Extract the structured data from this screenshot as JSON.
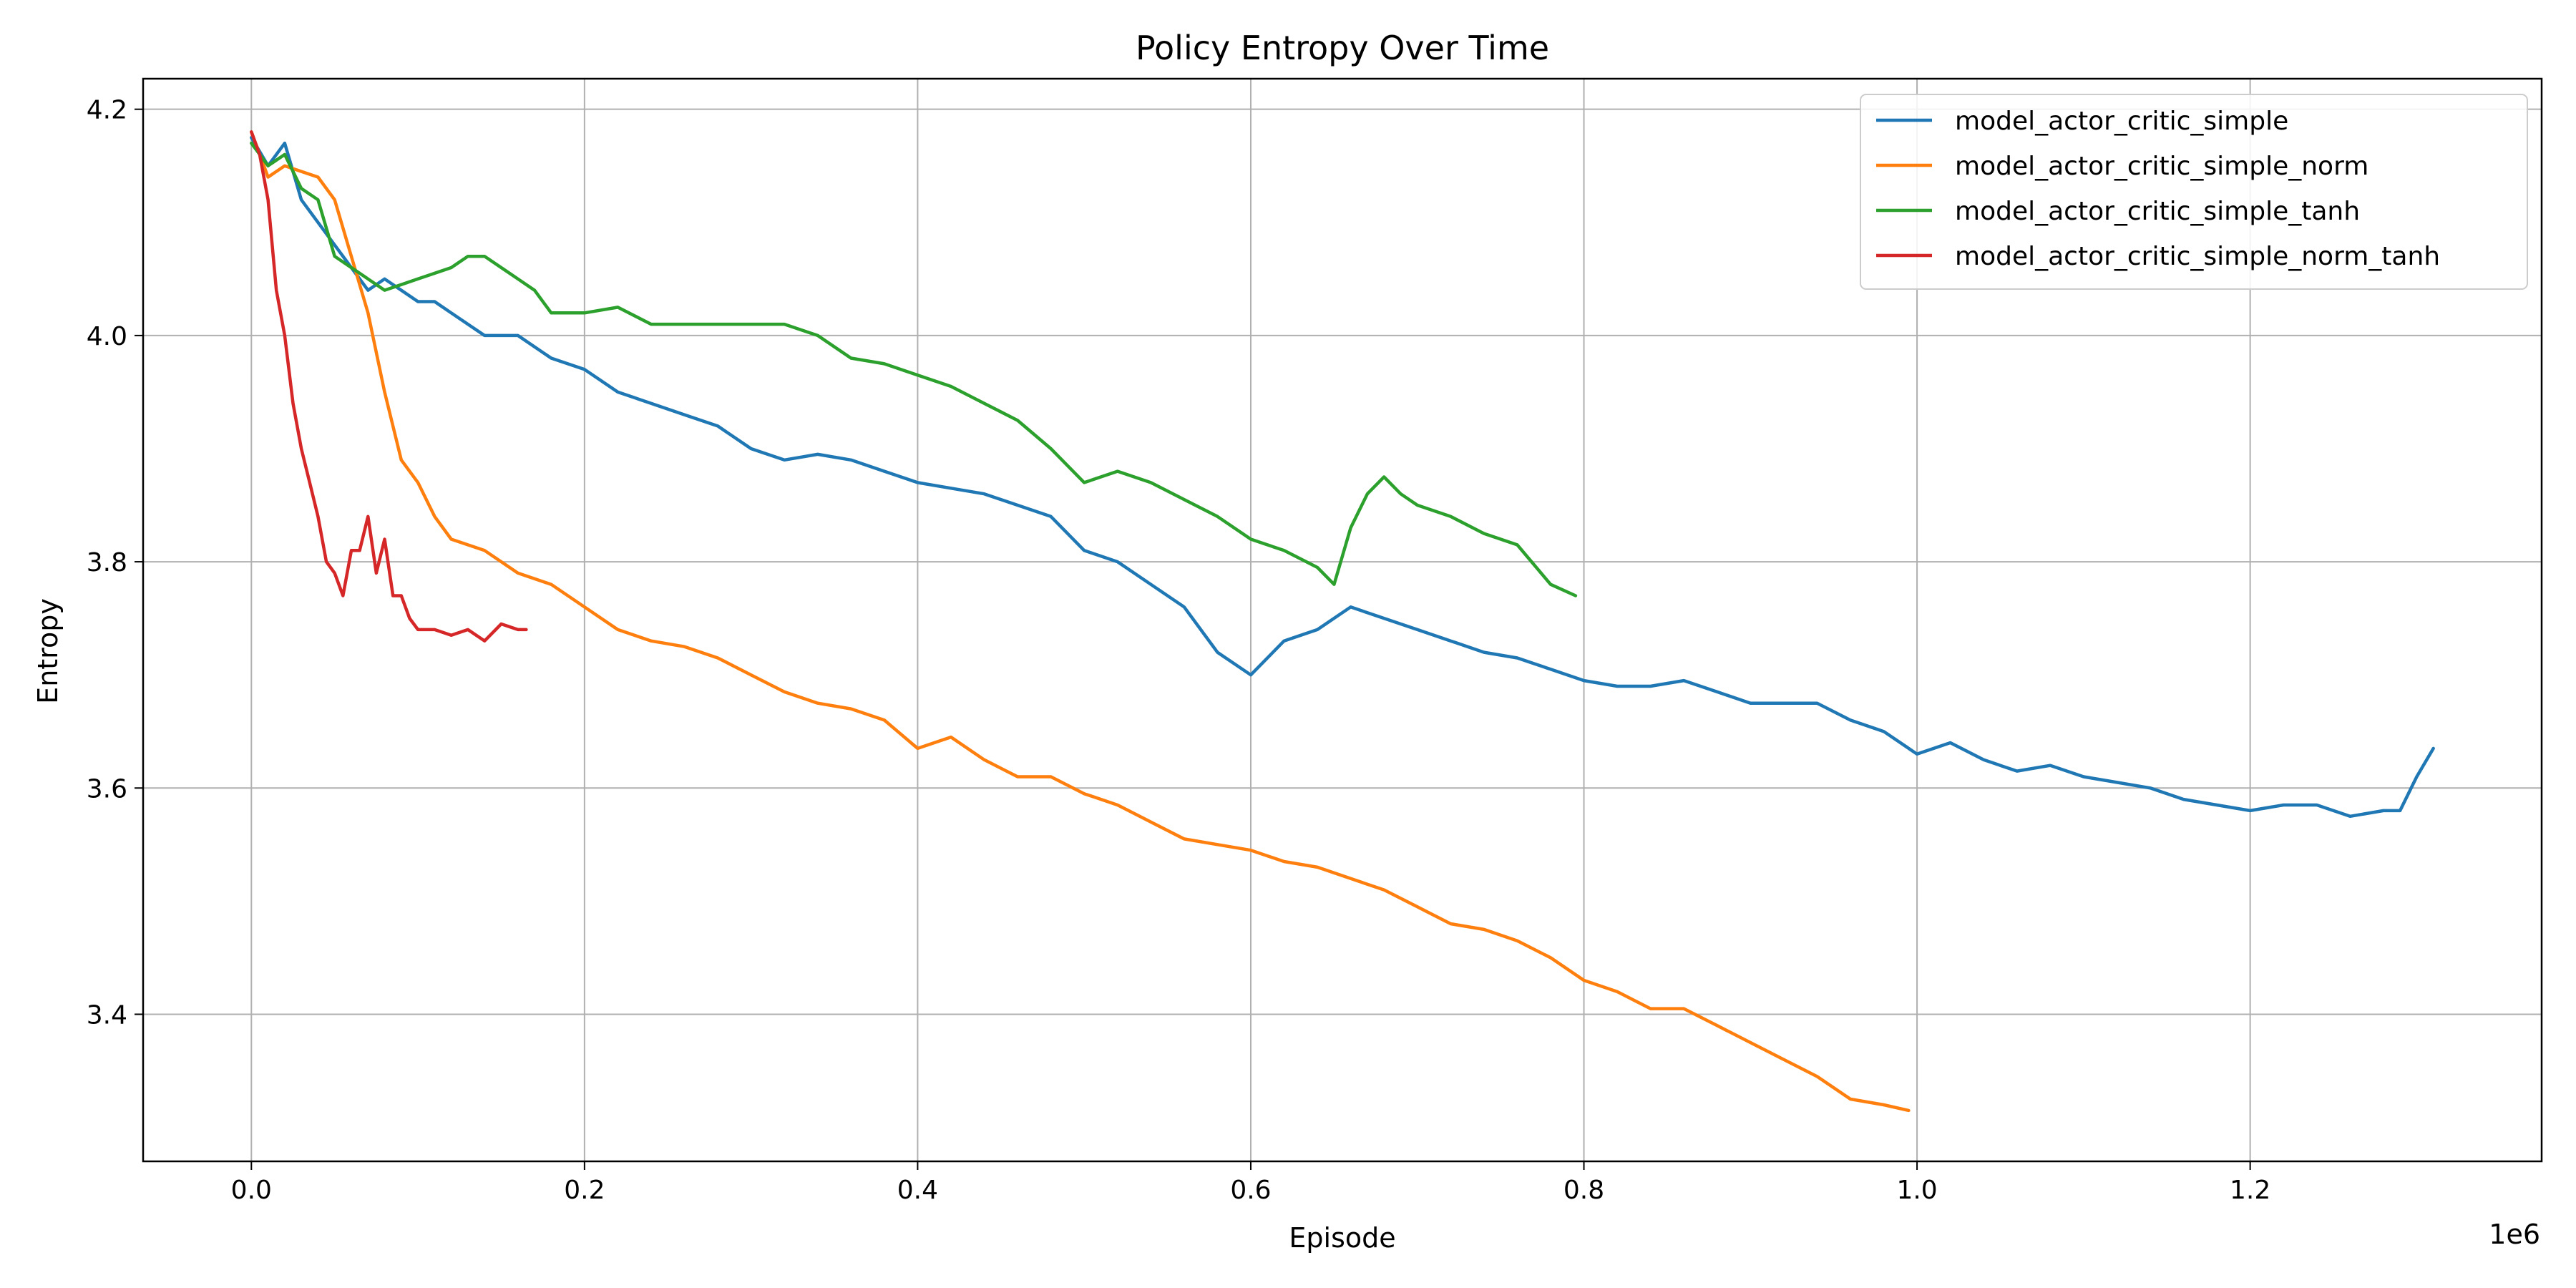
{
  "chart_data": {
    "type": "line",
    "title": "Policy Entropy Over Time",
    "xlabel": "Episode",
    "ylabel": "Entropy",
    "x_scale_label": "1e6",
    "xlim": [
      -65000,
      1375000
    ],
    "ylim": [
      3.27,
      4.227
    ],
    "x_ticks": [
      0,
      200000,
      400000,
      600000,
      800000,
      1000000,
      1200000
    ],
    "x_tick_labels": [
      "0.0",
      "0.2",
      "0.4",
      "0.6",
      "0.8",
      "1.0",
      "1.2"
    ],
    "y_ticks": [
      3.4,
      3.6,
      3.8,
      4.0,
      4.2
    ],
    "y_tick_labels": [
      "3.4",
      "3.6",
      "3.8",
      "4.0",
      "4.2"
    ],
    "grid": true,
    "legend_position": "top-right",
    "series": [
      {
        "name": "model_actor_critic_simple",
        "color": "#1f77b4",
        "x": [
          0,
          10000,
          20000,
          30000,
          40000,
          50000,
          60000,
          70000,
          80000,
          90000,
          100000,
          110000,
          120000,
          140000,
          160000,
          180000,
          200000,
          220000,
          240000,
          260000,
          280000,
          300000,
          320000,
          340000,
          360000,
          380000,
          400000,
          420000,
          440000,
          460000,
          480000,
          500000,
          520000,
          540000,
          560000,
          580000,
          600000,
          620000,
          640000,
          660000,
          680000,
          700000,
          720000,
          740000,
          760000,
          780000,
          800000,
          820000,
          840000,
          860000,
          880000,
          900000,
          920000,
          940000,
          960000,
          980000,
          1000000,
          1020000,
          1040000,
          1060000,
          1080000,
          1100000,
          1120000,
          1140000,
          1160000,
          1180000,
          1200000,
          1220000,
          1240000,
          1260000,
          1280000,
          1290000,
          1300000,
          1310000
        ],
        "y": [
          4.175,
          4.15,
          4.17,
          4.12,
          4.1,
          4.08,
          4.06,
          4.04,
          4.05,
          4.04,
          4.03,
          4.03,
          4.02,
          4.0,
          4.0,
          3.98,
          3.97,
          3.95,
          3.94,
          3.93,
          3.92,
          3.9,
          3.89,
          3.895,
          3.89,
          3.88,
          3.87,
          3.865,
          3.86,
          3.85,
          3.84,
          3.81,
          3.8,
          3.78,
          3.76,
          3.72,
          3.7,
          3.73,
          3.74,
          3.76,
          3.75,
          3.74,
          3.73,
          3.72,
          3.715,
          3.705,
          3.695,
          3.69,
          3.69,
          3.695,
          3.685,
          3.675,
          3.675,
          3.675,
          3.66,
          3.65,
          3.63,
          3.64,
          3.625,
          3.615,
          3.62,
          3.61,
          3.605,
          3.6,
          3.59,
          3.585,
          3.58,
          3.585,
          3.585,
          3.575,
          3.58,
          3.58,
          3.61,
          3.635
        ]
      },
      {
        "name": "model_actor_critic_simple_norm",
        "color": "#ff7f0e",
        "x": [
          0,
          10000,
          20000,
          30000,
          40000,
          50000,
          60000,
          70000,
          80000,
          90000,
          100000,
          110000,
          120000,
          140000,
          160000,
          180000,
          200000,
          220000,
          240000,
          260000,
          280000,
          300000,
          320000,
          340000,
          360000,
          380000,
          400000,
          420000,
          440000,
          460000,
          480000,
          500000,
          520000,
          540000,
          560000,
          580000,
          600000,
          620000,
          640000,
          660000,
          680000,
          700000,
          720000,
          740000,
          760000,
          780000,
          800000,
          820000,
          840000,
          860000,
          880000,
          900000,
          920000,
          940000,
          960000,
          980000,
          995000
        ],
        "y": [
          4.18,
          4.14,
          4.15,
          4.145,
          4.14,
          4.12,
          4.07,
          4.02,
          3.95,
          3.89,
          3.87,
          3.84,
          3.82,
          3.81,
          3.79,
          3.78,
          3.76,
          3.74,
          3.73,
          3.725,
          3.715,
          3.7,
          3.685,
          3.675,
          3.67,
          3.66,
          3.635,
          3.645,
          3.625,
          3.61,
          3.61,
          3.595,
          3.585,
          3.57,
          3.555,
          3.55,
          3.545,
          3.535,
          3.53,
          3.52,
          3.51,
          3.495,
          3.48,
          3.475,
          3.465,
          3.45,
          3.43,
          3.42,
          3.405,
          3.405,
          3.39,
          3.375,
          3.36,
          3.345,
          3.325,
          3.32,
          3.315
        ]
      },
      {
        "name": "model_actor_critic_simple_tanh",
        "color": "#2ca02c",
        "x": [
          0,
          10000,
          20000,
          30000,
          40000,
          50000,
          60000,
          70000,
          80000,
          90000,
          100000,
          110000,
          120000,
          130000,
          140000,
          150000,
          160000,
          170000,
          180000,
          190000,
          200000,
          220000,
          240000,
          260000,
          280000,
          300000,
          320000,
          340000,
          360000,
          380000,
          400000,
          420000,
          440000,
          460000,
          480000,
          500000,
          520000,
          540000,
          560000,
          580000,
          600000,
          620000,
          640000,
          650000,
          660000,
          670000,
          680000,
          690000,
          700000,
          720000,
          740000,
          760000,
          780000,
          795000
        ],
        "y": [
          4.17,
          4.15,
          4.16,
          4.13,
          4.12,
          4.07,
          4.06,
          4.05,
          4.04,
          4.045,
          4.05,
          4.055,
          4.06,
          4.07,
          4.07,
          4.06,
          4.05,
          4.04,
          4.02,
          4.02,
          4.02,
          4.025,
          4.01,
          4.01,
          4.01,
          4.01,
          4.01,
          4.0,
          3.98,
          3.975,
          3.965,
          3.955,
          3.94,
          3.925,
          3.9,
          3.87,
          3.88,
          3.87,
          3.855,
          3.84,
          3.82,
          3.81,
          3.795,
          3.78,
          3.83,
          3.86,
          3.875,
          3.86,
          3.85,
          3.84,
          3.825,
          3.815,
          3.78,
          3.77
        ]
      },
      {
        "name": "model_actor_critic_simple_norm_tanh",
        "color": "#d62728",
        "x": [
          0,
          5000,
          10000,
          15000,
          20000,
          25000,
          30000,
          35000,
          40000,
          45000,
          50000,
          55000,
          60000,
          65000,
          70000,
          75000,
          80000,
          85000,
          90000,
          95000,
          100000,
          110000,
          120000,
          130000,
          140000,
          150000,
          160000,
          165000
        ],
        "y": [
          4.18,
          4.16,
          4.12,
          4.04,
          4.0,
          3.94,
          3.9,
          3.87,
          3.84,
          3.8,
          3.79,
          3.77,
          3.81,
          3.81,
          3.84,
          3.79,
          3.82,
          3.77,
          3.77,
          3.75,
          3.74,
          3.74,
          3.735,
          3.74,
          3.73,
          3.745,
          3.74,
          3.74
        ]
      }
    ]
  }
}
